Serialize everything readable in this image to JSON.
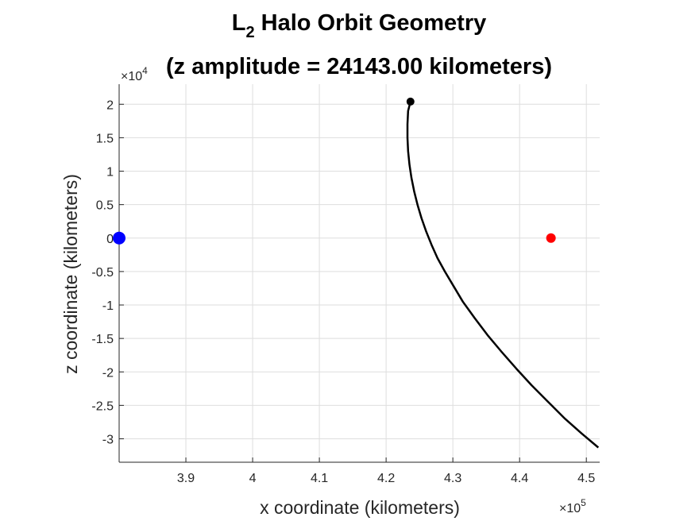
{
  "chart_data": {
    "type": "line",
    "title_main": "L",
    "title_subscript": "2",
    "title_rest": " Halo Orbit Geometry",
    "title_line2": "(z amplitude = 24143.00 kilometers)",
    "xlabel": "x coordinate (kilometers)",
    "ylabel": "z coordinate (kilometers)",
    "x_multiplier": "×10",
    "x_multiplier_exp": "5",
    "y_multiplier": "×10",
    "y_multiplier_exp": "4",
    "xlim": [
      3.8,
      4.52
    ],
    "ylim": [
      -3.35,
      2.3
    ],
    "x_ticks": [
      3.9,
      4.0,
      4.1,
      4.2,
      4.3,
      4.4,
      4.5
    ],
    "x_tick_labels": [
      "3.9",
      "4",
      "4.1",
      "4.2",
      "4.3",
      "4.4",
      "4.5"
    ],
    "y_ticks": [
      2,
      1.5,
      1,
      0.5,
      0,
      -0.5,
      -1,
      -1.5,
      -2,
      -2.5,
      -3
    ],
    "y_tick_labels": [
      "2",
      "1.5",
      "1",
      "0.5",
      "0",
      "-0.5",
      "-1",
      "-1.5",
      "-2",
      "-2.5",
      "-3"
    ],
    "grid": true,
    "series": [
      {
        "color": "#000000",
        "x": [
          4.2365,
          4.233,
          4.232,
          4.232,
          4.233,
          4.235,
          4.238,
          4.242,
          4.247,
          4.253,
          4.26,
          4.268,
          4.277,
          4.288,
          4.3,
          4.315,
          4.333,
          4.352,
          4.373,
          4.395,
          4.418,
          4.443,
          4.468,
          4.493,
          4.518
        ],
        "y": [
          2.04,
          1.9,
          1.7,
          1.5,
          1.3,
          1.1,
          0.9,
          0.7,
          0.5,
          0.3,
          0.1,
          -0.1,
          -0.3,
          -0.5,
          -0.7,
          -0.95,
          -1.2,
          -1.45,
          -1.7,
          -1.95,
          -2.2,
          -2.45,
          -2.7,
          -2.92,
          -3.13
        ]
      }
    ],
    "markers": [
      {
        "x": 4.2365,
        "y": 2.04,
        "color": "#000000",
        "size": "small"
      },
      {
        "x": 3.8,
        "y": 0,
        "color": "#0000ff",
        "size": "large"
      },
      {
        "x": 4.447,
        "y": 0,
        "color": "#ff0000",
        "size": "medium"
      }
    ]
  }
}
